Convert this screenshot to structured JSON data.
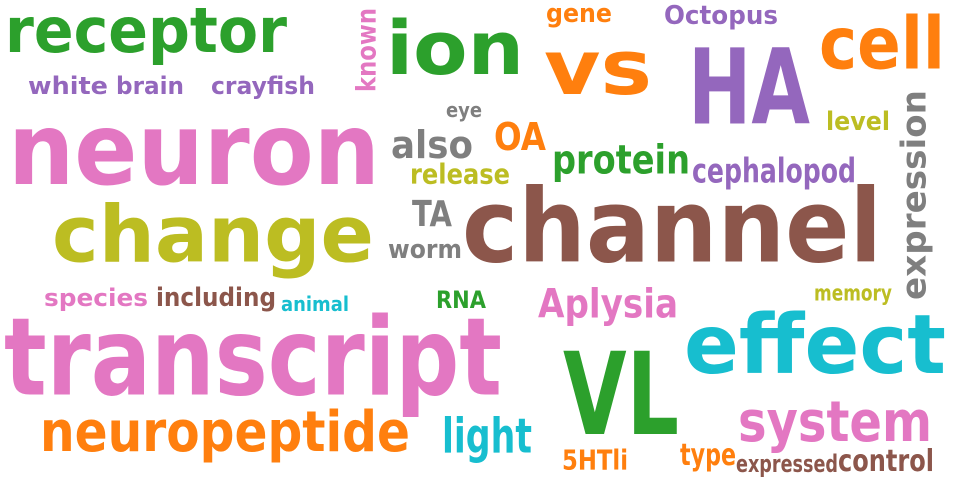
{
  "palette": {
    "green": "#2ca02c",
    "pink": "#e377c2",
    "orange": "#ff7f0e",
    "purple": "#9467bd",
    "brown": "#8c564b",
    "olive": "#bcbd22",
    "gray": "#7f7f7f",
    "cyan": "#17becf"
  },
  "words": [
    {
      "text": "receptor",
      "color": "green"
    },
    {
      "text": "known",
      "color": "pink"
    },
    {
      "text": "ion",
      "color": "green"
    },
    {
      "text": "gene",
      "color": "orange"
    },
    {
      "text": "Octopus",
      "color": "purple"
    },
    {
      "text": "cell",
      "color": "orange"
    },
    {
      "text": "vs",
      "color": "orange"
    },
    {
      "text": "HA",
      "color": "purple"
    },
    {
      "text": "white",
      "color": "purple"
    },
    {
      "text": "brain",
      "color": "purple"
    },
    {
      "text": "crayfish",
      "color": "purple"
    },
    {
      "text": "neuron",
      "color": "pink"
    },
    {
      "text": "eye",
      "color": "gray"
    },
    {
      "text": "level",
      "color": "olive"
    },
    {
      "text": "also",
      "color": "gray"
    },
    {
      "text": "OA",
      "color": "orange"
    },
    {
      "text": "expression",
      "color": "gray"
    },
    {
      "text": "protein",
      "color": "green"
    },
    {
      "text": "cephalopod",
      "color": "purple"
    },
    {
      "text": "release",
      "color": "olive"
    },
    {
      "text": "change",
      "color": "olive"
    },
    {
      "text": "TA",
      "color": "gray"
    },
    {
      "text": "channel",
      "color": "brown"
    },
    {
      "text": "worm",
      "color": "gray"
    },
    {
      "text": "species",
      "color": "pink"
    },
    {
      "text": "including",
      "color": "brown"
    },
    {
      "text": "animal",
      "color": "cyan"
    },
    {
      "text": "RNA",
      "color": "green"
    },
    {
      "text": "Aplysia",
      "color": "pink"
    },
    {
      "text": "memory",
      "color": "olive"
    },
    {
      "text": "transcript",
      "color": "pink"
    },
    {
      "text": "effect",
      "color": "cyan"
    },
    {
      "text": "VL",
      "color": "green"
    },
    {
      "text": "neuropeptide",
      "color": "orange"
    },
    {
      "text": "light",
      "color": "cyan"
    },
    {
      "text": "system",
      "color": "pink"
    },
    {
      "text": "5HTli",
      "color": "orange"
    },
    {
      "text": "type",
      "color": "orange"
    },
    {
      "text": "expressed",
      "color": "brown"
    },
    {
      "text": "control",
      "color": "brown"
    }
  ]
}
